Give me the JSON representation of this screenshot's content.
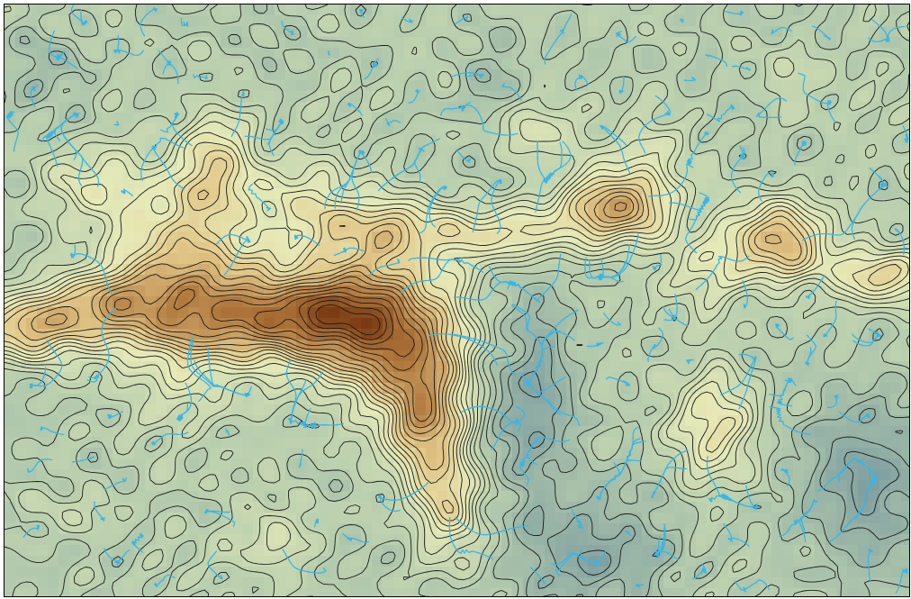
{
  "map": {
    "kind": "shaded-relief topographic map with contour lines and drainage network",
    "colors": {
      "lowland": "#7f9fa0",
      "low_mid": "#b9cfae",
      "mid": "#e6eab8",
      "upland": "#e2c98a",
      "high": "#b27a3e",
      "peak": "#7a3a12",
      "contour": "#1a1a1a",
      "stream": "#38b6e6"
    },
    "contour_levels": 24,
    "labels": []
  }
}
